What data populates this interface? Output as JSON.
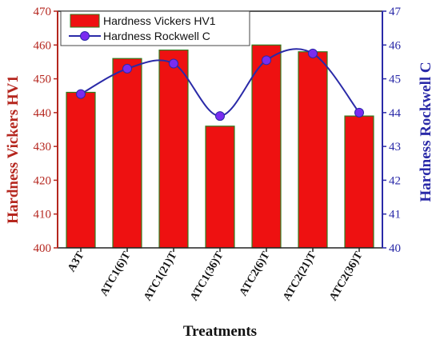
{
  "chart_data": {
    "type": "bar",
    "categories": [
      "A3T",
      "ATC1(6)T",
      "ATC1(21)T",
      "ATC1(36)T",
      "ATC2(6)T",
      "ATC2(21)T",
      "ATC2(36)T"
    ],
    "series": [
      {
        "name": "Hardness Vickers  HV1",
        "type": "bar",
        "axis": "left",
        "values": [
          446,
          456,
          458.5,
          436,
          460,
          458,
          439
        ],
        "color": "#ee1111"
      },
      {
        "name": "Hardness Rockwell C",
        "type": "line",
        "axis": "right",
        "values": [
          44.55,
          45.3,
          45.45,
          43.9,
          45.55,
          45.75,
          44.0
        ],
        "color": "#2a2aa8",
        "marker_color": "#7a2cf0"
      }
    ],
    "xlabel": "Treatments",
    "ylabel": "Hardness Vickers  HV1",
    "y2label": "Hardness Rockwell C",
    "ylim": [
      400,
      470
    ],
    "y2lim": [
      40,
      47
    ],
    "yticks": [
      400,
      410,
      420,
      430,
      440,
      450,
      460,
      470
    ],
    "y2ticks": [
      40,
      41,
      42,
      43,
      44,
      45,
      46,
      47
    ],
    "legend_position": "top-left",
    "grid": false,
    "colors": {
      "left_axis": "#b5261e",
      "right_axis": "#2a2aa8",
      "bar_edge": "#2e7d1e"
    }
  }
}
